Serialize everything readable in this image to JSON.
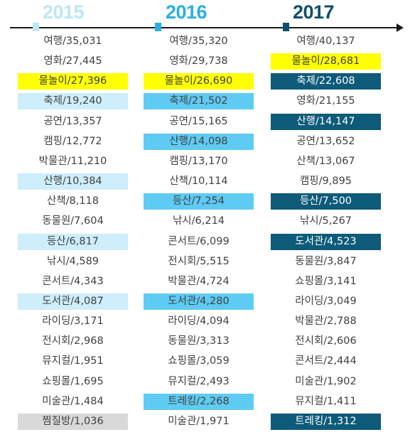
{
  "colors": {
    "yellow": "#ffff00",
    "light_blue_2015": "#cdeefa",
    "sky_blue_2016": "#5ecbf3",
    "navy_2017": "#0d5a79",
    "gray": "#d9d9d9",
    "year_2015": "#bde6f6",
    "year_2016": "#29b0e2",
    "year_2017": "#0e4f6e"
  },
  "chart_data": {
    "type": "table",
    "columns": [
      {
        "year": "2015",
        "color": "year_2015",
        "rows": [
          {
            "text": "여행/35,031",
            "highlight": "none"
          },
          {
            "text": "영화/27,445",
            "highlight": "none"
          },
          {
            "text": "물놀이/27,396",
            "highlight": "yellow"
          },
          {
            "text": "축제/19,240",
            "highlight": "light_blue_2015"
          },
          {
            "text": "공연/13,357",
            "highlight": "none"
          },
          {
            "text": "캠핑/12,772",
            "highlight": "none"
          },
          {
            "text": "박물관/11,210",
            "highlight": "none"
          },
          {
            "text": "산행/10,384",
            "highlight": "light_blue_2015"
          },
          {
            "text": "산책/8,118",
            "highlight": "none"
          },
          {
            "text": "동물원/7,604",
            "highlight": "none"
          },
          {
            "text": "등산/6,817",
            "highlight": "light_blue_2015"
          },
          {
            "text": "낚시/4,589",
            "highlight": "none"
          },
          {
            "text": "콘서트/4,343",
            "highlight": "none"
          },
          {
            "text": "도서관/4,087",
            "highlight": "light_blue_2015"
          },
          {
            "text": "라이딩/3,171",
            "highlight": "none"
          },
          {
            "text": "전시회/2,968",
            "highlight": "none"
          },
          {
            "text": "뮤지컬/1,951",
            "highlight": "none"
          },
          {
            "text": "쇼핑몰/1,695",
            "highlight": "none"
          },
          {
            "text": "미술관/1,484",
            "highlight": "none"
          },
          {
            "text": "찜질방/1,036",
            "highlight": "gray"
          }
        ]
      },
      {
        "year": "2016",
        "color": "year_2016",
        "rows": [
          {
            "text": "여행/35,320",
            "highlight": "none"
          },
          {
            "text": "영화/29,738",
            "highlight": "none"
          },
          {
            "text": "물놀이/26,690",
            "highlight": "yellow"
          },
          {
            "text": "축제/21,502",
            "highlight": "sky_blue_2016"
          },
          {
            "text": "공연/15,165",
            "highlight": "none"
          },
          {
            "text": "산행/14,098",
            "highlight": "sky_blue_2016"
          },
          {
            "text": "캠핑/13,170",
            "highlight": "none"
          },
          {
            "text": "산책/10,114",
            "highlight": "none"
          },
          {
            "text": "등산/7,254",
            "highlight": "sky_blue_2016"
          },
          {
            "text": "낚시/6,214",
            "highlight": "none"
          },
          {
            "text": "콘서트/6,099",
            "highlight": "none"
          },
          {
            "text": "전시회/5,515",
            "highlight": "none"
          },
          {
            "text": "박물관/4,724",
            "highlight": "none"
          },
          {
            "text": "도서관/4,280",
            "highlight": "sky_blue_2016"
          },
          {
            "text": "라이딩/4,094",
            "highlight": "none"
          },
          {
            "text": "동물원/3,313",
            "highlight": "none"
          },
          {
            "text": "쇼핑몰/3,059",
            "highlight": "none"
          },
          {
            "text": "뮤지컬/2,493",
            "highlight": "none"
          },
          {
            "text": "트레킹/2,268",
            "highlight": "sky_blue_2016"
          },
          {
            "text": "미술관/1,971",
            "highlight": "none"
          }
        ]
      },
      {
        "year": "2017",
        "color": "year_2017",
        "rows": [
          {
            "text": "여행/40,137",
            "highlight": "none"
          },
          {
            "text": "물놀이/28,681",
            "highlight": "yellow"
          },
          {
            "text": "축제/22,608",
            "highlight": "navy_2017"
          },
          {
            "text": "영화/21,155",
            "highlight": "none"
          },
          {
            "text": "산행/14,147",
            "highlight": "navy_2017"
          },
          {
            "text": "공연/13,652",
            "highlight": "none"
          },
          {
            "text": "산책/13,067",
            "highlight": "none"
          },
          {
            "text": "캠핑/9,895",
            "highlight": "none"
          },
          {
            "text": "등산/7,500",
            "highlight": "navy_2017"
          },
          {
            "text": "낚시/5,267",
            "highlight": "none"
          },
          {
            "text": "도서관/4,523",
            "highlight": "navy_2017"
          },
          {
            "text": "동물원/3,847",
            "highlight": "none"
          },
          {
            "text": "쇼핑몰/3,141",
            "highlight": "none"
          },
          {
            "text": "라이딩/3,049",
            "highlight": "none"
          },
          {
            "text": "박물관/2,788",
            "highlight": "none"
          },
          {
            "text": "전시회/2,606",
            "highlight": "none"
          },
          {
            "text": "콘서트/2,444",
            "highlight": "none"
          },
          {
            "text": "미술관/1,902",
            "highlight": "none"
          },
          {
            "text": "뮤지컬/1,411",
            "highlight": "none"
          },
          {
            "text": "트레킹/1,312",
            "highlight": "navy_2017"
          }
        ]
      }
    ]
  }
}
